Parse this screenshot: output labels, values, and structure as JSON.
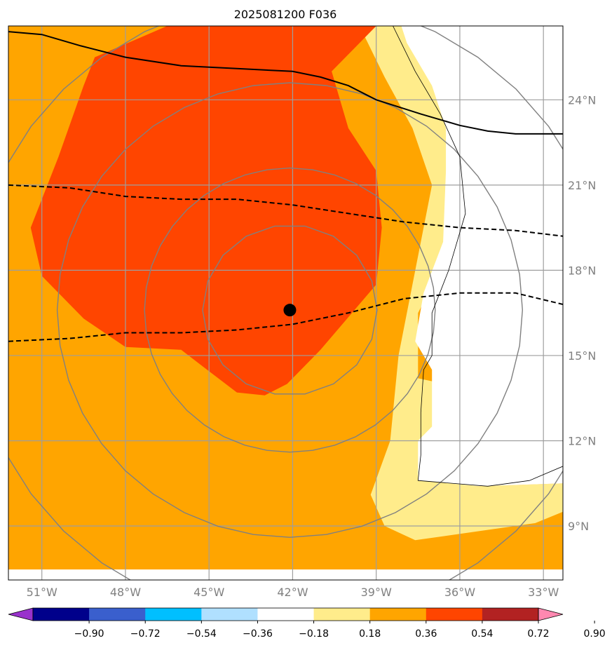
{
  "chart_data": {
    "type": "heatmap",
    "title": "2025081200 F036",
    "map": {
      "lon_range": [
        -52.2,
        -32.3
      ],
      "lat_range": [
        7.1,
        26.6
      ],
      "x_ticks": [
        "51°W",
        "48°W",
        "45°W",
        "42°W",
        "39°W",
        "36°W",
        "33°W"
      ],
      "x_tick_values": [
        -51,
        -48,
        -45,
        -42,
        -39,
        -36,
        -33
      ],
      "y_ticks": [
        "24°N",
        "21°N",
        "18°N",
        "15°N",
        "12°N",
        "9°N"
      ],
      "y_tick_values": [
        24,
        21,
        18,
        15,
        12,
        9
      ],
      "grid": true,
      "center_marker": {
        "lon": -42.1,
        "lat": 16.6
      },
      "range_rings_deg": [
        3,
        5,
        8,
        11
      ]
    },
    "colorbar": {
      "tick_labels": [
        "−0.90",
        "−0.72",
        "−0.54",
        "−0.36",
        "−0.18",
        "0.18",
        "0.36",
        "0.54",
        "0.72",
        "0.90"
      ],
      "tick_values": [
        -0.9,
        -0.72,
        -0.54,
        -0.36,
        -0.18,
        0.18,
        0.36,
        0.54,
        0.72,
        0.9
      ],
      "colors": [
        "#9932cc",
        "#00008b",
        "#3a5fcd",
        "#00bfff",
        "#b0e0ff",
        "#ffffff",
        "#ffec8b",
        "#ffa500",
        "#ff4500",
        "#b22222",
        "#ff88b0"
      ],
      "extend": "both"
    },
    "fill_colors": {
      "background": "#ffa500",
      "core": "#ff4500",
      "light": "#ffec8b",
      "neutral": "#ffffff"
    },
    "regions": [
      {
        "level": "0.54 to 0.72",
        "color": "#ff4500",
        "outline": [
          [
            -46.5,
            26.6
          ],
          [
            -39.0,
            26.6
          ],
          [
            -40.6,
            25.0
          ],
          [
            -40.0,
            23.0
          ],
          [
            -39.0,
            21.5
          ],
          [
            -38.8,
            19.5
          ],
          [
            -39.0,
            17.5
          ],
          [
            -41.0,
            15.2
          ],
          [
            -42.2,
            14.0
          ],
          [
            -43.0,
            13.6
          ],
          [
            -44.0,
            13.7
          ],
          [
            -45.2,
            14.6
          ],
          [
            -46.0,
            15.2
          ],
          [
            -48.0,
            15.3
          ],
          [
            -49.5,
            16.3
          ],
          [
            -51.0,
            17.8
          ],
          [
            -51.4,
            19.5
          ],
          [
            -50.4,
            22.0
          ],
          [
            -49.5,
            24.5
          ],
          [
            -49.1,
            25.5
          ]
        ]
      },
      {
        "level": "0.18 to 0.36",
        "color": "#ffec8b",
        "outline": [
          [
            -39.6,
            26.6
          ],
          [
            -37.3,
            26.6
          ],
          [
            -36.8,
            25.0
          ],
          [
            -36.3,
            22.6
          ],
          [
            -35.6,
            21.5
          ],
          [
            -35.6,
            19.5
          ],
          [
            -36.7,
            18.0
          ],
          [
            -37.5,
            16.5
          ],
          [
            -37.5,
            14.2
          ],
          [
            -35.6,
            13.8
          ],
          [
            -35.5,
            11.5
          ],
          [
            -35.3,
            10.4
          ],
          [
            -32.3,
            10.5
          ],
          [
            -32.3,
            9.5
          ],
          [
            -33.3,
            9.1
          ],
          [
            -37.6,
            8.5
          ],
          [
            -38.7,
            9.0
          ],
          [
            -39.2,
            10.1
          ],
          [
            -38.5,
            12.0
          ],
          [
            -38.2,
            15.0
          ],
          [
            -37.8,
            17.0
          ],
          [
            -37.4,
            19.0
          ],
          [
            -37.0,
            21.0
          ],
          [
            -37.7,
            23.0
          ],
          [
            -38.7,
            24.8
          ]
        ]
      },
      {
        "level": "-0.18 to 0.18",
        "color": "#ffffff",
        "outline": [
          [
            -38.1,
            26.6
          ],
          [
            -32.3,
            26.6
          ],
          [
            -32.3,
            10.5
          ],
          [
            -35.3,
            10.4
          ],
          [
            -37.5,
            10.6
          ],
          [
            -37.5,
            12.0
          ],
          [
            -37.0,
            12.5
          ],
          [
            -37.0,
            14.5
          ],
          [
            -37.6,
            15.5
          ],
          [
            -37.3,
            17.2
          ],
          [
            -36.6,
            19.0
          ],
          [
            -36.5,
            21.5
          ],
          [
            -36.5,
            23.0
          ],
          [
            -37.0,
            24.5
          ],
          [
            -37.9,
            26.0
          ]
        ]
      }
    ],
    "contours_solid": [
      [
        [
          -52.2,
          26.4
        ],
        [
          -51.0,
          26.3
        ],
        [
          -49.6,
          25.9
        ],
        [
          -48.0,
          25.5
        ],
        [
          -46.0,
          25.2
        ],
        [
          -44.0,
          25.1
        ],
        [
          -42.0,
          25.0
        ],
        [
          -41.0,
          24.8
        ],
        [
          -40.0,
          24.5
        ],
        [
          -39.0,
          24.0
        ],
        [
          -37.4,
          23.5
        ],
        [
          -36.0,
          23.1
        ],
        [
          -35.0,
          22.9
        ],
        [
          -34.0,
          22.8
        ],
        [
          -32.3,
          22.8
        ]
      ]
    ],
    "contours_dashed": [
      [
        [
          -52.2,
          21.0
        ],
        [
          -50.0,
          20.9
        ],
        [
          -48.0,
          20.6
        ],
        [
          -46.0,
          20.5
        ],
        [
          -44.0,
          20.5
        ],
        [
          -42.0,
          20.3
        ],
        [
          -40.0,
          20.0
        ],
        [
          -38.0,
          19.7
        ],
        [
          -36.0,
          19.5
        ],
        [
          -34.0,
          19.4
        ],
        [
          -32.3,
          19.2
        ]
      ],
      [
        [
          -52.2,
          15.5
        ],
        [
          -50.0,
          15.6
        ],
        [
          -48.0,
          15.8
        ],
        [
          -46.0,
          15.8
        ],
        [
          -44.0,
          15.9
        ],
        [
          -42.0,
          16.1
        ],
        [
          -40.0,
          16.5
        ],
        [
          -38.0,
          17.0
        ],
        [
          -36.0,
          17.2
        ],
        [
          -34.0,
          17.2
        ],
        [
          -32.3,
          16.8
        ]
      ]
    ],
    "coastline_thin": [
      [
        [
          -38.4,
          26.6
        ],
        [
          -37.6,
          25.0
        ],
        [
          -36.7,
          23.5
        ],
        [
          -36.0,
          22.0
        ],
        [
          -35.8,
          20.0
        ],
        [
          -36.4,
          18.0
        ],
        [
          -37.0,
          16.5
        ],
        [
          -37.0,
          15.0
        ],
        [
          -37.3,
          14.5
        ],
        [
          -37.4,
          13.0
        ],
        [
          -37.4,
          11.5
        ],
        [
          -37.5,
          10.6
        ],
        [
          -35.0,
          10.4
        ],
        [
          -33.5,
          10.6
        ],
        [
          -32.3,
          11.1
        ]
      ]
    ]
  }
}
